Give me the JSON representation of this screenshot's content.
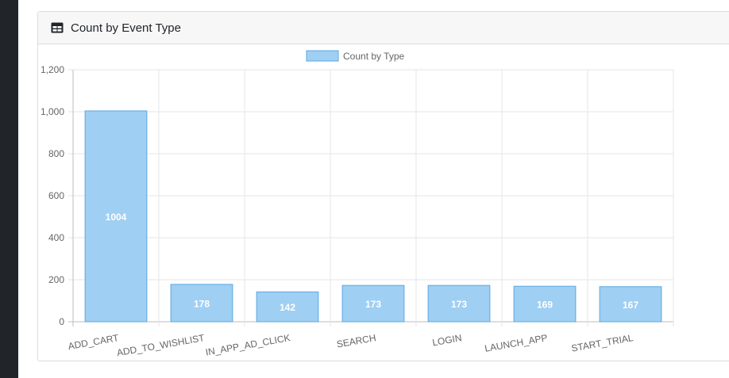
{
  "card": {
    "title": "Count by Event Type",
    "icon": "table-icon"
  },
  "colors": {
    "bar_fill": "#9fcff3",
    "bar_stroke": "#5aa9e0",
    "grid": "#e5e5e5",
    "axis": "#bdbdbd",
    "tick_text": "#666666",
    "label_text": "#ffffff",
    "sidebar": "#212529"
  },
  "chart_data": {
    "type": "bar",
    "categories": [
      "ADD_CART",
      "ADD_TO_WISHLIST",
      "IN_APP_AD_CLICK",
      "SEARCH",
      "LOGIN",
      "LAUNCH_APP",
      "START_TRIAL"
    ],
    "series": [
      {
        "name": "Count by Type",
        "values": [
          1004,
          178,
          142,
          173,
          173,
          169,
          167
        ]
      }
    ],
    "ylim": [
      0,
      1200
    ],
    "yticks": [
      "0",
      "200",
      "400",
      "600",
      "800",
      "1,000",
      "1,200"
    ],
    "legend_position": "top-center",
    "grid": true,
    "data_labels": true
  }
}
